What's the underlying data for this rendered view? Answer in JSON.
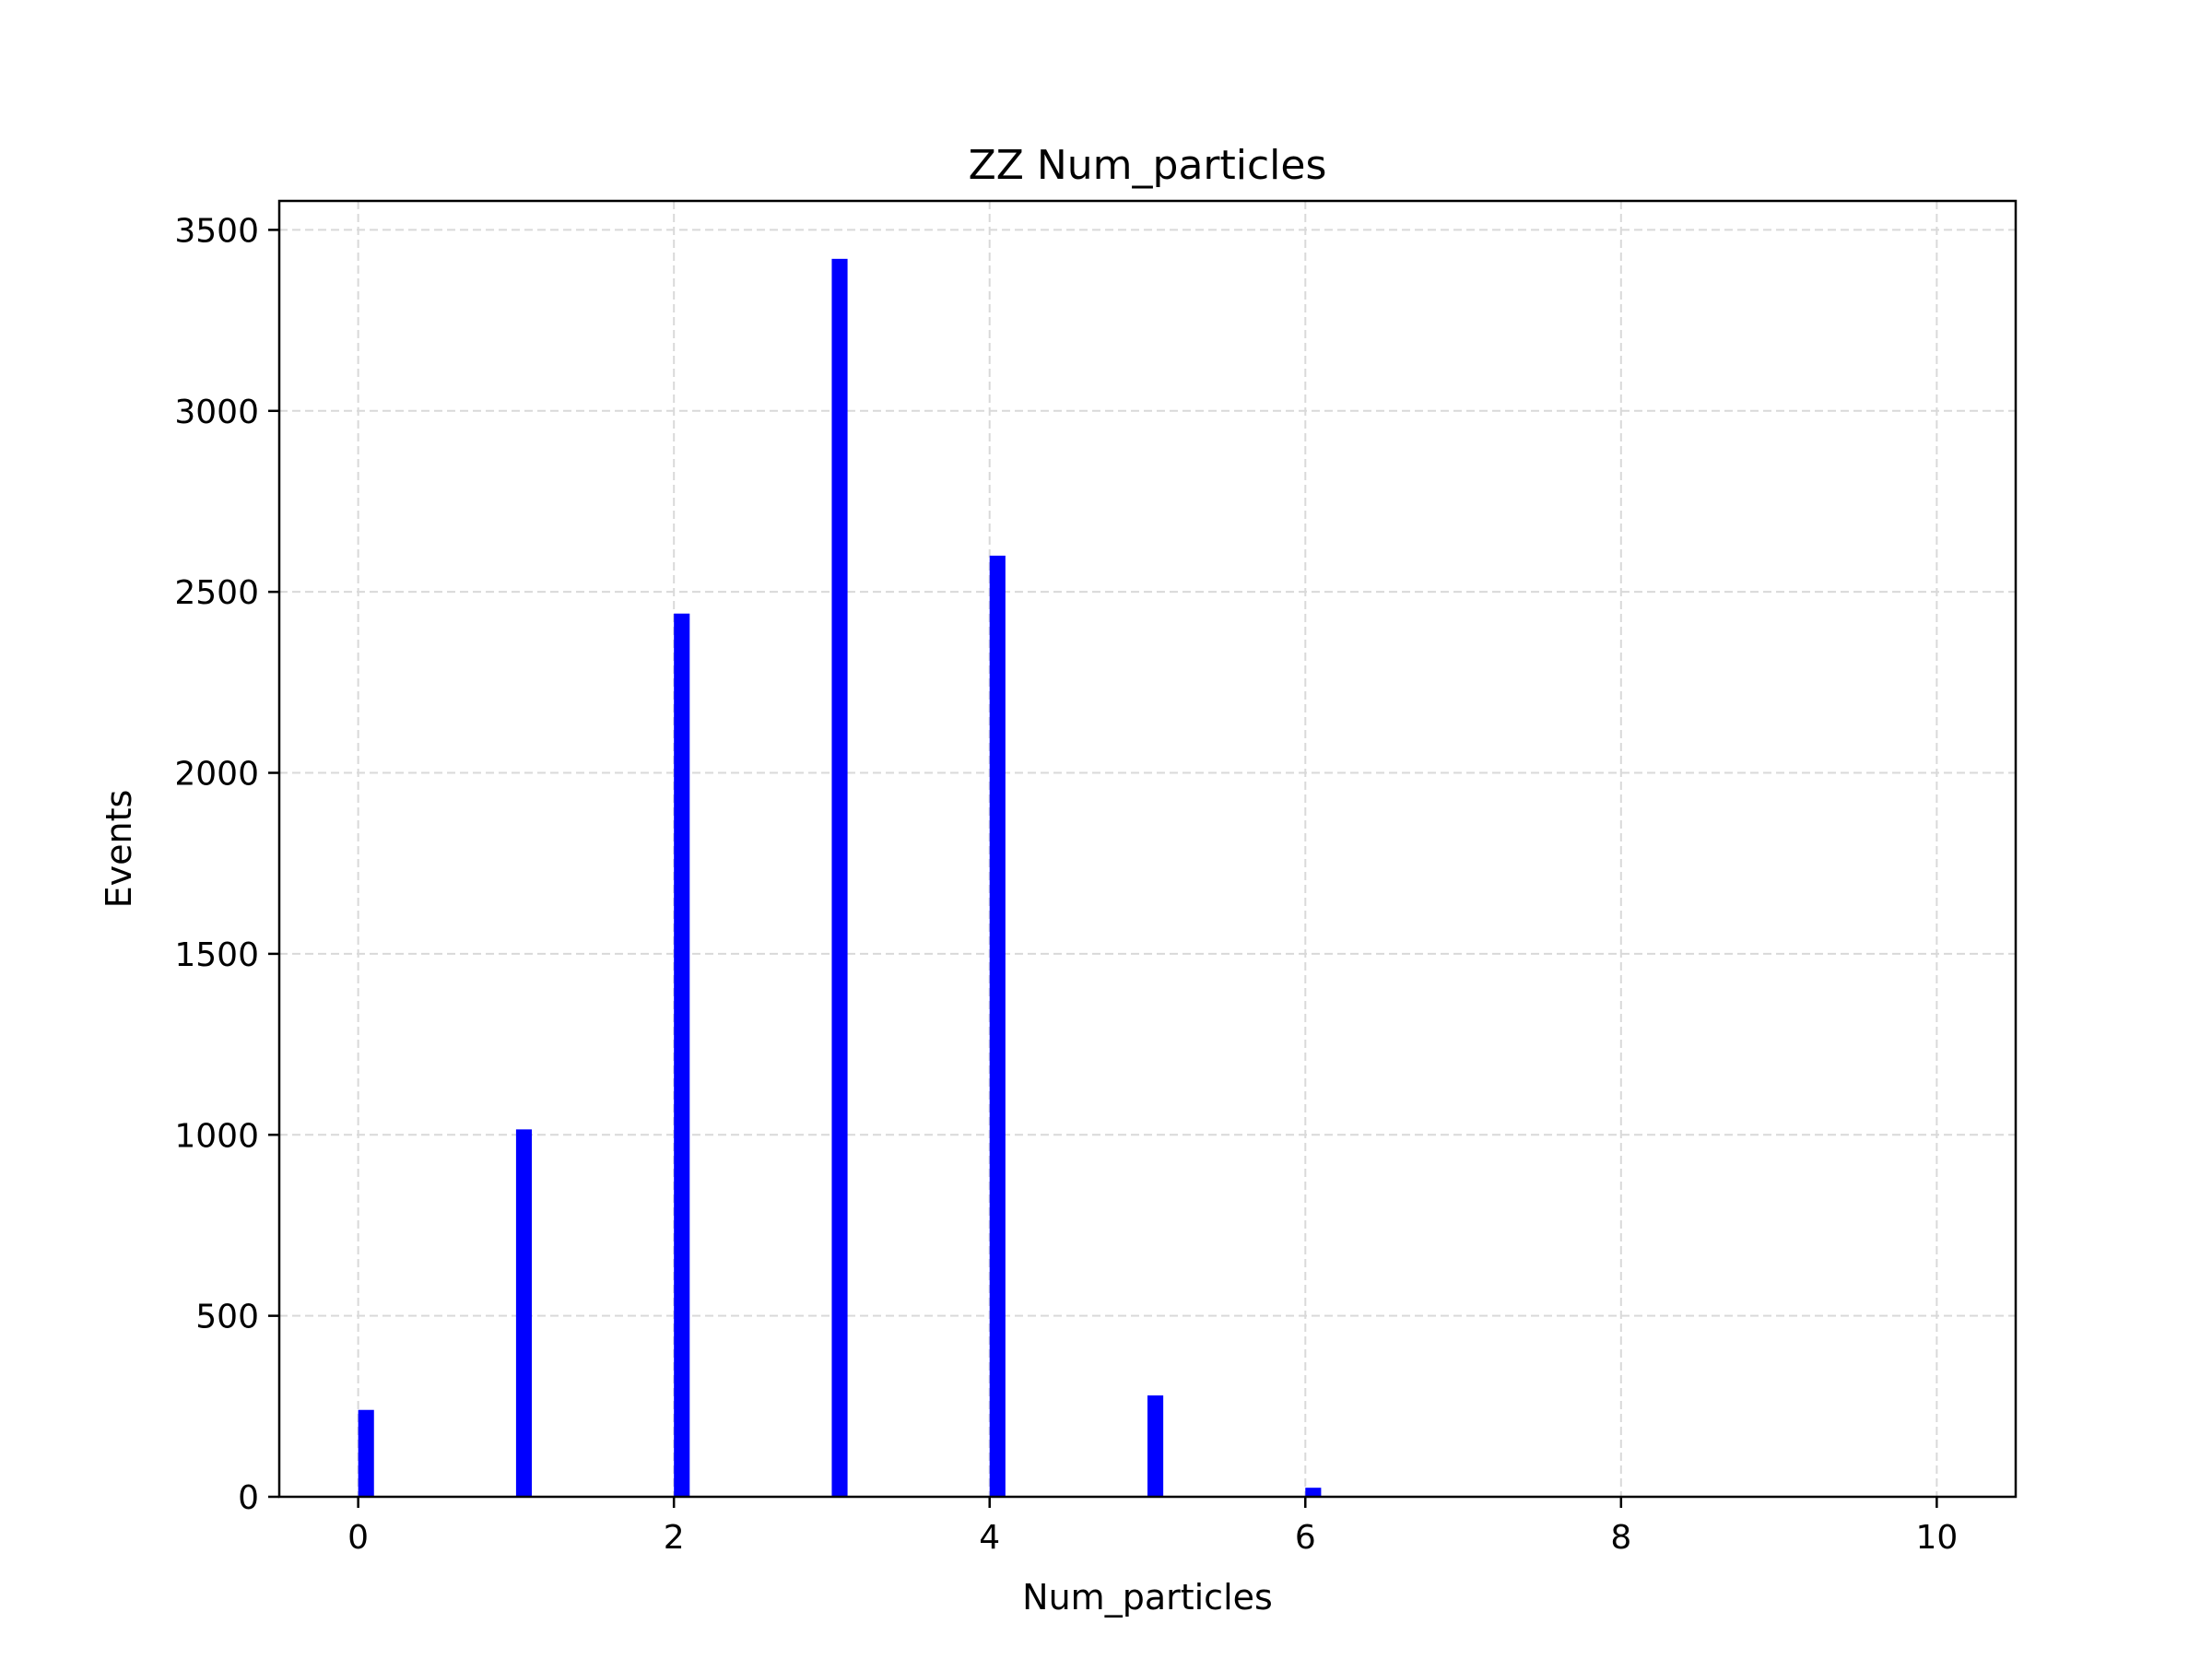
{
  "chart_data": {
    "type": "bar",
    "title": "ZZ Num_particles",
    "xlabel": "Num_particles",
    "ylabel": "Events",
    "xlim": [
      -0.5,
      10.5
    ],
    "ylim": [
      0,
      3580
    ],
    "x": [
      0,
      1,
      2,
      3,
      4,
      5,
      6,
      7,
      8,
      9,
      10
    ],
    "values": [
      240,
      1015,
      2440,
      3420,
      2600,
      280,
      25,
      0,
      0,
      0,
      0
    ],
    "bar_width": 0.1,
    "bar_align": "left",
    "bar_color": "#0000ff",
    "xticks": [
      0,
      2,
      4,
      6,
      8,
      10
    ],
    "xtick_labels": [
      "0",
      "2",
      "4",
      "6",
      "8",
      "10"
    ],
    "yticks": [
      0,
      500,
      1000,
      1500,
      2000,
      2500,
      3000,
      3500
    ],
    "ytick_labels": [
      "0",
      "500",
      "1000",
      "1500",
      "2000",
      "2500",
      "3000",
      "3500"
    ],
    "grid": true,
    "grid_style": "dashed",
    "grid_color": "#d9d9d9"
  }
}
